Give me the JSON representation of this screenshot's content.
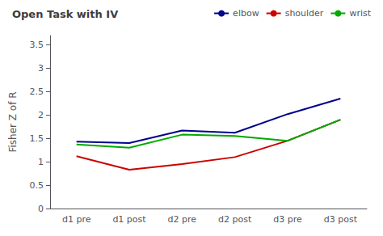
{
  "chart_data": {
    "type": "line",
    "title": "Open Task with IV",
    "y_label": "Fisher Z of R",
    "categories": [
      "d1 pre",
      "d1 post",
      "d2 pre",
      "d2 post",
      "d3 pre",
      "d3 post"
    ],
    "series": [
      {
        "name": "elbow",
        "color": "#00008B",
        "values": [
          1.43,
          1.4,
          1.67,
          1.62,
          2.02,
          2.35
        ]
      },
      {
        "name": "shoulder",
        "color": "#cc0000",
        "values": [
          1.12,
          0.83,
          0.95,
          1.1,
          1.45,
          1.9
        ]
      },
      {
        "name": "wrist",
        "color": "#00aa00",
        "values": [
          1.37,
          1.3,
          1.58,
          1.55,
          1.45,
          1.9
        ]
      }
    ],
    "ylim": [
      0,
      3.7
    ],
    "yticks": [
      0,
      0.5,
      1,
      1.5,
      2,
      2.5,
      3,
      3.5
    ],
    "grid": false,
    "legend": "upper right"
  }
}
